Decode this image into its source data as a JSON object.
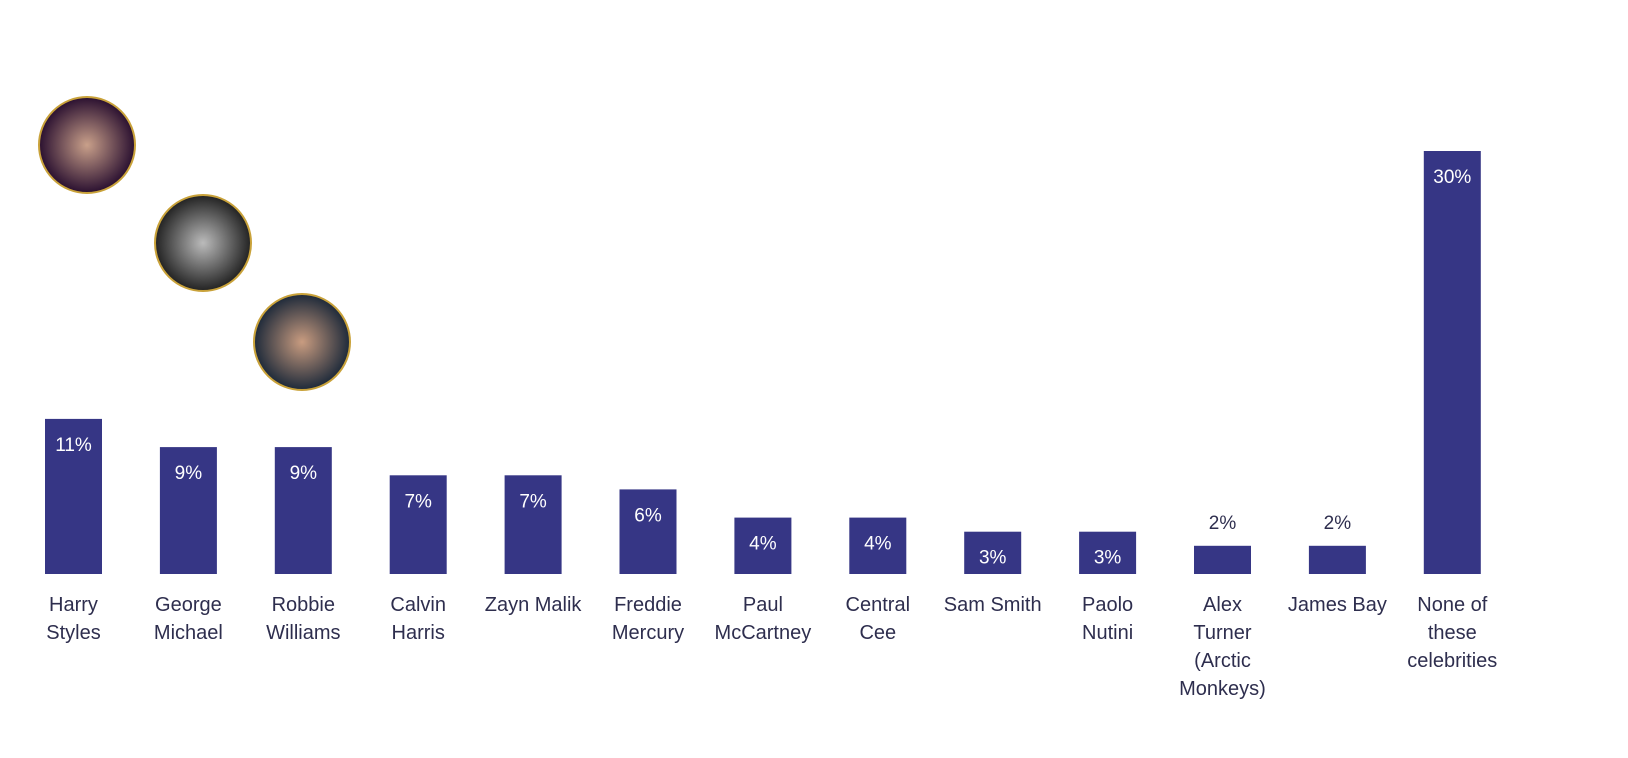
{
  "chart_data": {
    "type": "bar",
    "categories": [
      "Harry Styles",
      "George Michael",
      "Robbie Williams",
      "Calvin Harris",
      "Zayn Malik",
      "Freddie Mercury",
      "Paul McCartney",
      "Central Cee",
      "Sam Smith",
      "Paolo Nutini",
      "Alex Turner (Arctic Monkeys)",
      "James Bay",
      "None of these celebrities"
    ],
    "values": [
      11,
      9,
      9,
      7,
      7,
      6,
      4,
      4,
      3,
      3,
      2,
      2,
      30
    ],
    "value_labels": [
      "11%",
      "9%",
      "9%",
      "7%",
      "7%",
      "6%",
      "4%",
      "4%",
      "3%",
      "3%",
      "2%",
      "2%",
      "30%"
    ],
    "color": "#363685"
  }
}
